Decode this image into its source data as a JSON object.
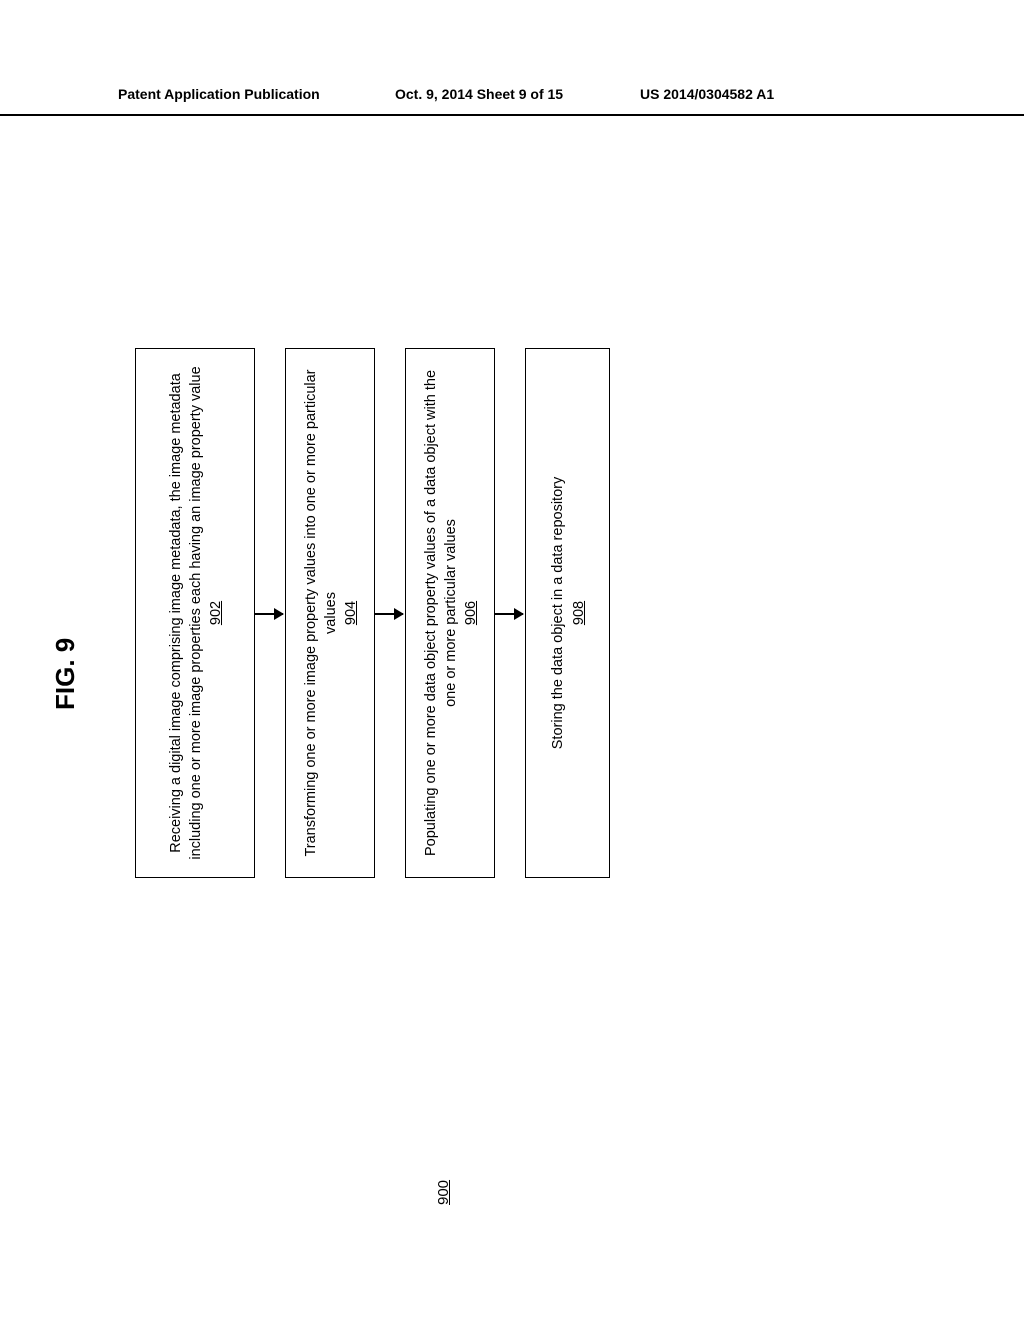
{
  "header": {
    "left": "Patent Application Publication",
    "center": "Oct. 9, 2014   Sheet 9 of 15",
    "right": "US 2014/0304582 A1"
  },
  "figure": {
    "label": "FIG. 9",
    "method_number": "900"
  },
  "flowchart": {
    "type": "flowchart",
    "orientation": "rotated-90",
    "boxes": [
      {
        "id": "902",
        "text": "Receiving a digital image comprising image metadata, the image metadata including one or more image properties each having an image property value",
        "number": "902"
      },
      {
        "id": "904",
        "text": "Transforming one or more image property values into one or more particular values",
        "number": "904"
      },
      {
        "id": "906",
        "text": "Populating one or more data object property values of a data object with the one or more particular values",
        "number": "906"
      },
      {
        "id": "908",
        "text": "Storing the data object in a data repository",
        "number": "908"
      }
    ],
    "edges": [
      {
        "from": "902",
        "to": "904"
      },
      {
        "from": "904",
        "to": "906"
      },
      {
        "from": "906",
        "to": "908"
      }
    ],
    "colors": {
      "background": "#ffffff",
      "border": "#000000",
      "text": "#000000",
      "arrow": "#000000"
    }
  }
}
